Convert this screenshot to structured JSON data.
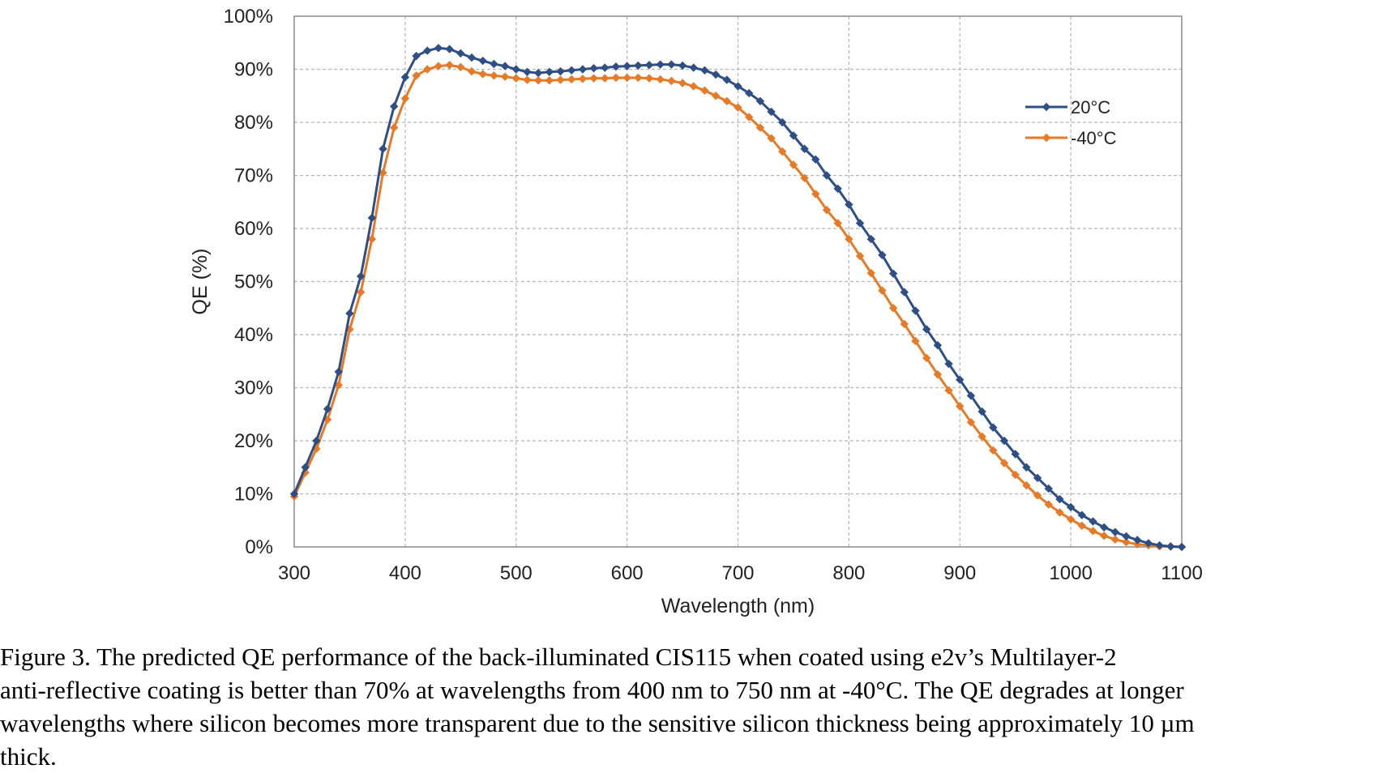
{
  "chart_data": {
    "type": "line",
    "xlabel": "Wavelength (nm)",
    "ylabel": "QE (%)",
    "xlim": [
      300,
      1100
    ],
    "ylim": [
      0,
      100
    ],
    "x_ticks": [
      "300",
      "400",
      "500",
      "600",
      "700",
      "800",
      "900",
      "1000",
      "1100"
    ],
    "y_ticks": [
      "0%",
      "10%",
      "20%",
      "30%",
      "40%",
      "50%",
      "60%",
      "70%",
      "80%",
      "90%",
      "100%"
    ],
    "grid": true,
    "grid_style": "dashed",
    "legend_position": "right, upper",
    "marker": "diamond",
    "x": [
      300,
      310,
      320,
      330,
      340,
      350,
      360,
      370,
      380,
      390,
      400,
      410,
      420,
      430,
      440,
      450,
      460,
      470,
      480,
      490,
      500,
      510,
      520,
      530,
      540,
      550,
      560,
      570,
      580,
      590,
      600,
      610,
      620,
      630,
      640,
      650,
      660,
      670,
      680,
      690,
      700,
      710,
      720,
      730,
      740,
      750,
      760,
      770,
      780,
      790,
      800,
      810,
      820,
      830,
      840,
      850,
      860,
      870,
      880,
      890,
      900,
      910,
      920,
      930,
      940,
      950,
      960,
      970,
      980,
      990,
      1000,
      1010,
      1020,
      1030,
      1040,
      1050,
      1060,
      1070,
      1080,
      1090,
      1100
    ],
    "series": [
      {
        "name": "20°C",
        "color": "#2e4f86",
        "values": [
          10,
          15,
          20,
          26,
          33,
          44,
          51,
          62,
          75,
          83,
          88.5,
          92.5,
          93.5,
          94,
          93.8,
          93,
          92.2,
          91.6,
          91,
          90.6,
          90,
          89.5,
          89.3,
          89.5,
          89.6,
          89.8,
          90,
          90.2,
          90.3,
          90.5,
          90.6,
          90.7,
          90.8,
          90.9,
          90.9,
          90.7,
          90.3,
          89.8,
          89,
          88,
          86.8,
          85.5,
          84,
          82,
          80,
          77.5,
          75,
          73,
          70,
          67.5,
          64.5,
          61,
          58,
          55,
          51.5,
          48,
          44.5,
          41,
          38,
          34.5,
          31.5,
          28.5,
          25.5,
          22.5,
          20,
          17.5,
          15,
          13,
          11,
          9,
          7.5,
          6,
          4.8,
          3.7,
          2.8,
          2,
          1.3,
          0.7,
          0.3,
          0.1,
          0
        ]
      },
      {
        "name": "-40°C",
        "color": "#e67a26",
        "values": [
          9.5,
          14,
          18.5,
          24,
          30.5,
          41,
          48,
          58,
          70.5,
          79,
          84.5,
          88.8,
          90,
          90.6,
          90.8,
          90.4,
          89.6,
          89.1,
          88.8,
          88.6,
          88.3,
          88,
          87.9,
          87.9,
          88,
          88.1,
          88.2,
          88.3,
          88.3,
          88.4,
          88.4,
          88.4,
          88.3,
          88.1,
          87.8,
          87.4,
          86.8,
          86,
          85,
          84,
          82.8,
          81,
          79,
          77,
          74.5,
          72,
          69.5,
          66.5,
          63.5,
          61,
          58,
          54.8,
          51.6,
          48.3,
          45,
          42,
          38.8,
          35.6,
          32.5,
          29.5,
          26.5,
          23.5,
          20.8,
          18.2,
          15.8,
          13.6,
          11.6,
          9.7,
          8,
          6.5,
          5.2,
          4,
          3,
          2.1,
          1.4,
          0.9,
          0.5,
          0.3,
          0.1,
          0.05,
          0
        ]
      }
    ]
  },
  "caption": {
    "lines": [
      "Figure 3. The predicted QE performance of the back-illuminated CIS115 when coated using e2v’s Multilayer-2",
      "anti-reflective coating is better than 70% at wavelengths from 400 nm to 750 nm at -40°C. The QE degrades at longer",
      "wavelengths where silicon becomes more transparent due to the sensitive silicon thickness being approximately 10 µm",
      "thick."
    ]
  }
}
